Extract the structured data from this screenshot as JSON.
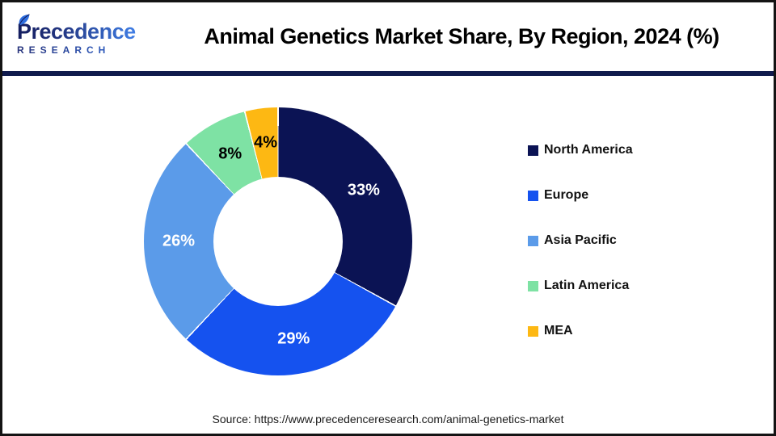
{
  "header": {
    "logo_line1": "Precedence",
    "logo_line2": "RESEARCH",
    "title": "Animal Genetics Market Share, By Region, 2024 (%)"
  },
  "chart_data": {
    "type": "pie",
    "subtype": "donut",
    "title": "Animal Genetics Market Share, By Region, 2024 (%)",
    "categories": [
      "North America",
      "Europe",
      "Asia Pacific",
      "Latin America",
      "MEA"
    ],
    "values": [
      33,
      29,
      26,
      8,
      4
    ],
    "unit": "%",
    "data_labels": [
      "33%",
      "29%",
      "26%",
      "8%",
      "4%"
    ],
    "colors": [
      "#0b1354",
      "#1552ef",
      "#5b9be9",
      "#7ee2a4",
      "#fdb813"
    ],
    "label_colors": [
      "#ffffff",
      "#ffffff",
      "#ffffff",
      "#000000",
      "#000000"
    ],
    "start_angle_deg": 0,
    "direction": "clockwise",
    "legend_position": "right",
    "hole_ratio": 0.48
  },
  "footer": {
    "source": "Source: https://www.precedenceresearch.com/animal-genetics-market"
  }
}
